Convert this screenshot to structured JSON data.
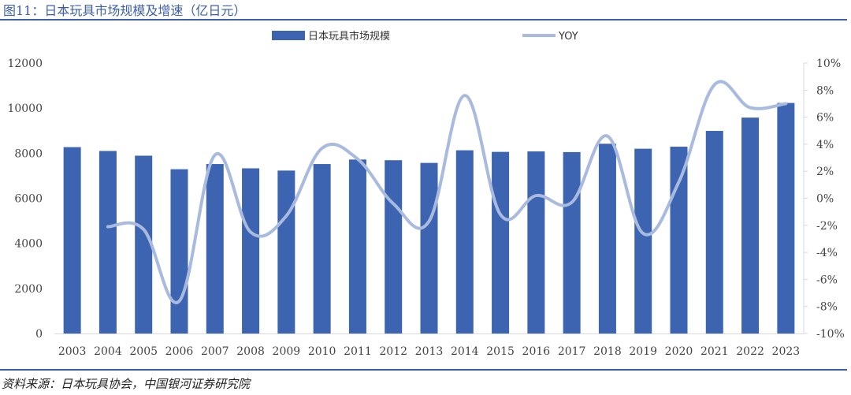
{
  "title": "图11：日本玩具市场规模及增速（亿日元）",
  "source": "资料来源：日本玩具协会，中国银河证券研究院",
  "chart_data": {
    "type": "bar+line",
    "categories": [
      "2003",
      "2004",
      "2005",
      "2006",
      "2007",
      "2008",
      "2009",
      "2010",
      "2011",
      "2012",
      "2013",
      "2014",
      "2015",
      "2016",
      "2017",
      "2018",
      "2019",
      "2020",
      "2021",
      "2022",
      "2023"
    ],
    "series": [
      {
        "name": "日本玩具市场规模",
        "type": "bar",
        "axis": "left",
        "color": "#3c64b1",
        "values": [
          8270,
          8100,
          7890,
          7290,
          7520,
          7330,
          7230,
          7520,
          7720,
          7690,
          7570,
          8130,
          8060,
          8080,
          8050,
          8420,
          8200,
          8290,
          8990,
          9580,
          10230
        ]
      },
      {
        "name": "YOY",
        "type": "line",
        "axis": "right",
        "color": "#a9badf",
        "values": [
          null,
          -2.1,
          -2.3,
          -7.6,
          3.2,
          -2.5,
          -1.3,
          3.7,
          2.9,
          -0.4,
          -1.7,
          7.6,
          -1.2,
          0.2,
          -0.3,
          4.6,
          -2.6,
          1.2,
          8.4,
          6.7,
          7.0
        ]
      }
    ],
    "y_left": {
      "min": 0,
      "max": 12000,
      "ticks": [
        "0",
        "2000",
        "4000",
        "6000",
        "8000",
        "10000",
        "12000"
      ]
    },
    "y_right": {
      "min": -10,
      "max": 10,
      "ticks": [
        "-10%",
        "-8%",
        "-6%",
        "-4%",
        "-2%",
        "0%",
        "2%",
        "4%",
        "6%",
        "8%",
        "10%"
      ]
    },
    "legend_position": "top",
    "grid": false
  }
}
